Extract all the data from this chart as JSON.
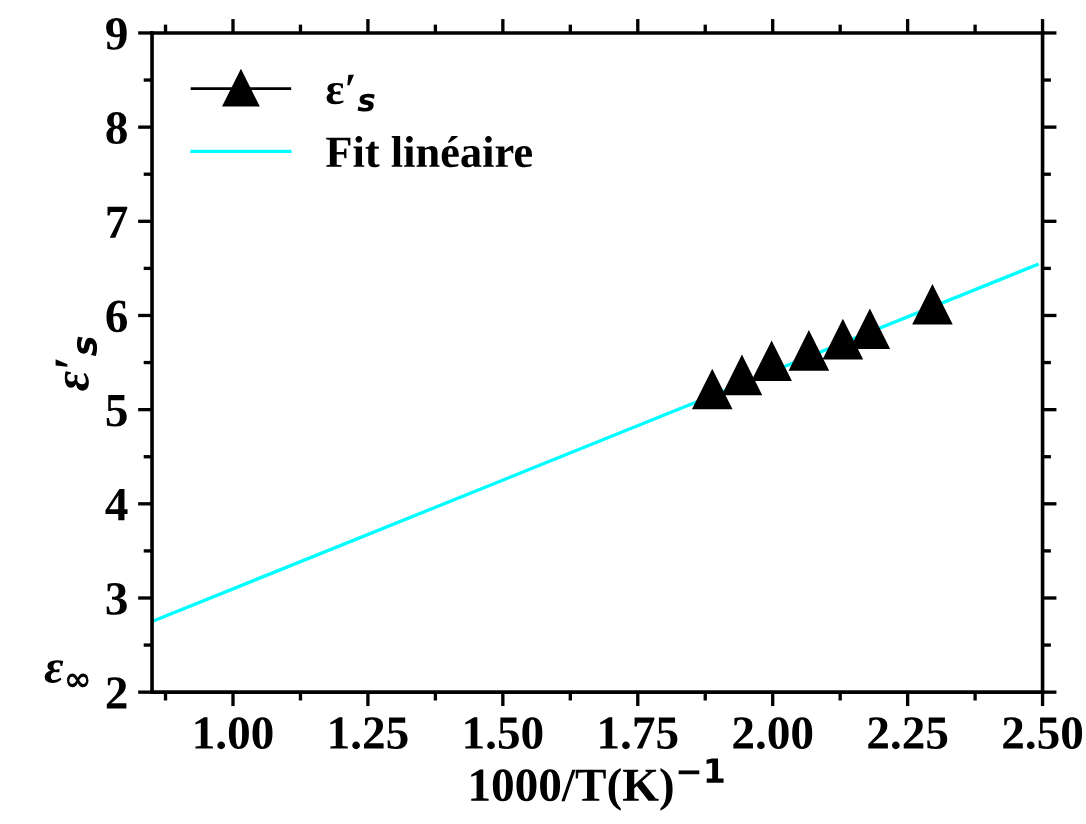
{
  "chart_data": {
    "type": "scatter",
    "xlabel": "1000/T(K)$^{−1}$",
    "ylabel": "ε′$_{s}$",
    "series": [
      {
        "name": "ε′$_{s}$",
        "color": "#000000",
        "marker": "triangle",
        "x": [
          1.888,
          1.943,
          1.998,
          2.067,
          2.13,
          2.18,
          2.296
        ],
        "values": [
          5.21,
          5.36,
          5.51,
          5.62,
          5.74,
          5.85,
          6.11
        ]
      },
      {
        "name": "Fit linéaire",
        "type": "line",
        "color": "#00ffff",
        "marker": "none",
        "line_style": "solid",
        "x": [
          0.85,
          2.49
        ],
        "values": [
          2.75,
          6.54
        ]
      }
    ],
    "annotations": [
      {
        "text": "ε$_{∞}$",
        "x": 0.85,
        "y": 2.75
      }
    ],
    "xlim": [
      0.85,
      2.5
    ],
    "xticks": [
      {
        "value": 1,
        "label": "1.00"
      },
      1.25,
      {
        "value": 1.5,
        "label": "1.50"
      },
      1.75,
      {
        "value": 2,
        "label": "2.00"
      },
      2.25,
      {
        "value": 2.5,
        "label": "2.50"
      }
    ],
    "ylim": [
      2,
      9
    ],
    "yticks": [
      2,
      3,
      4,
      5,
      6,
      7,
      8,
      9
    ],
    "grid": false,
    "legend": "top left"
  }
}
